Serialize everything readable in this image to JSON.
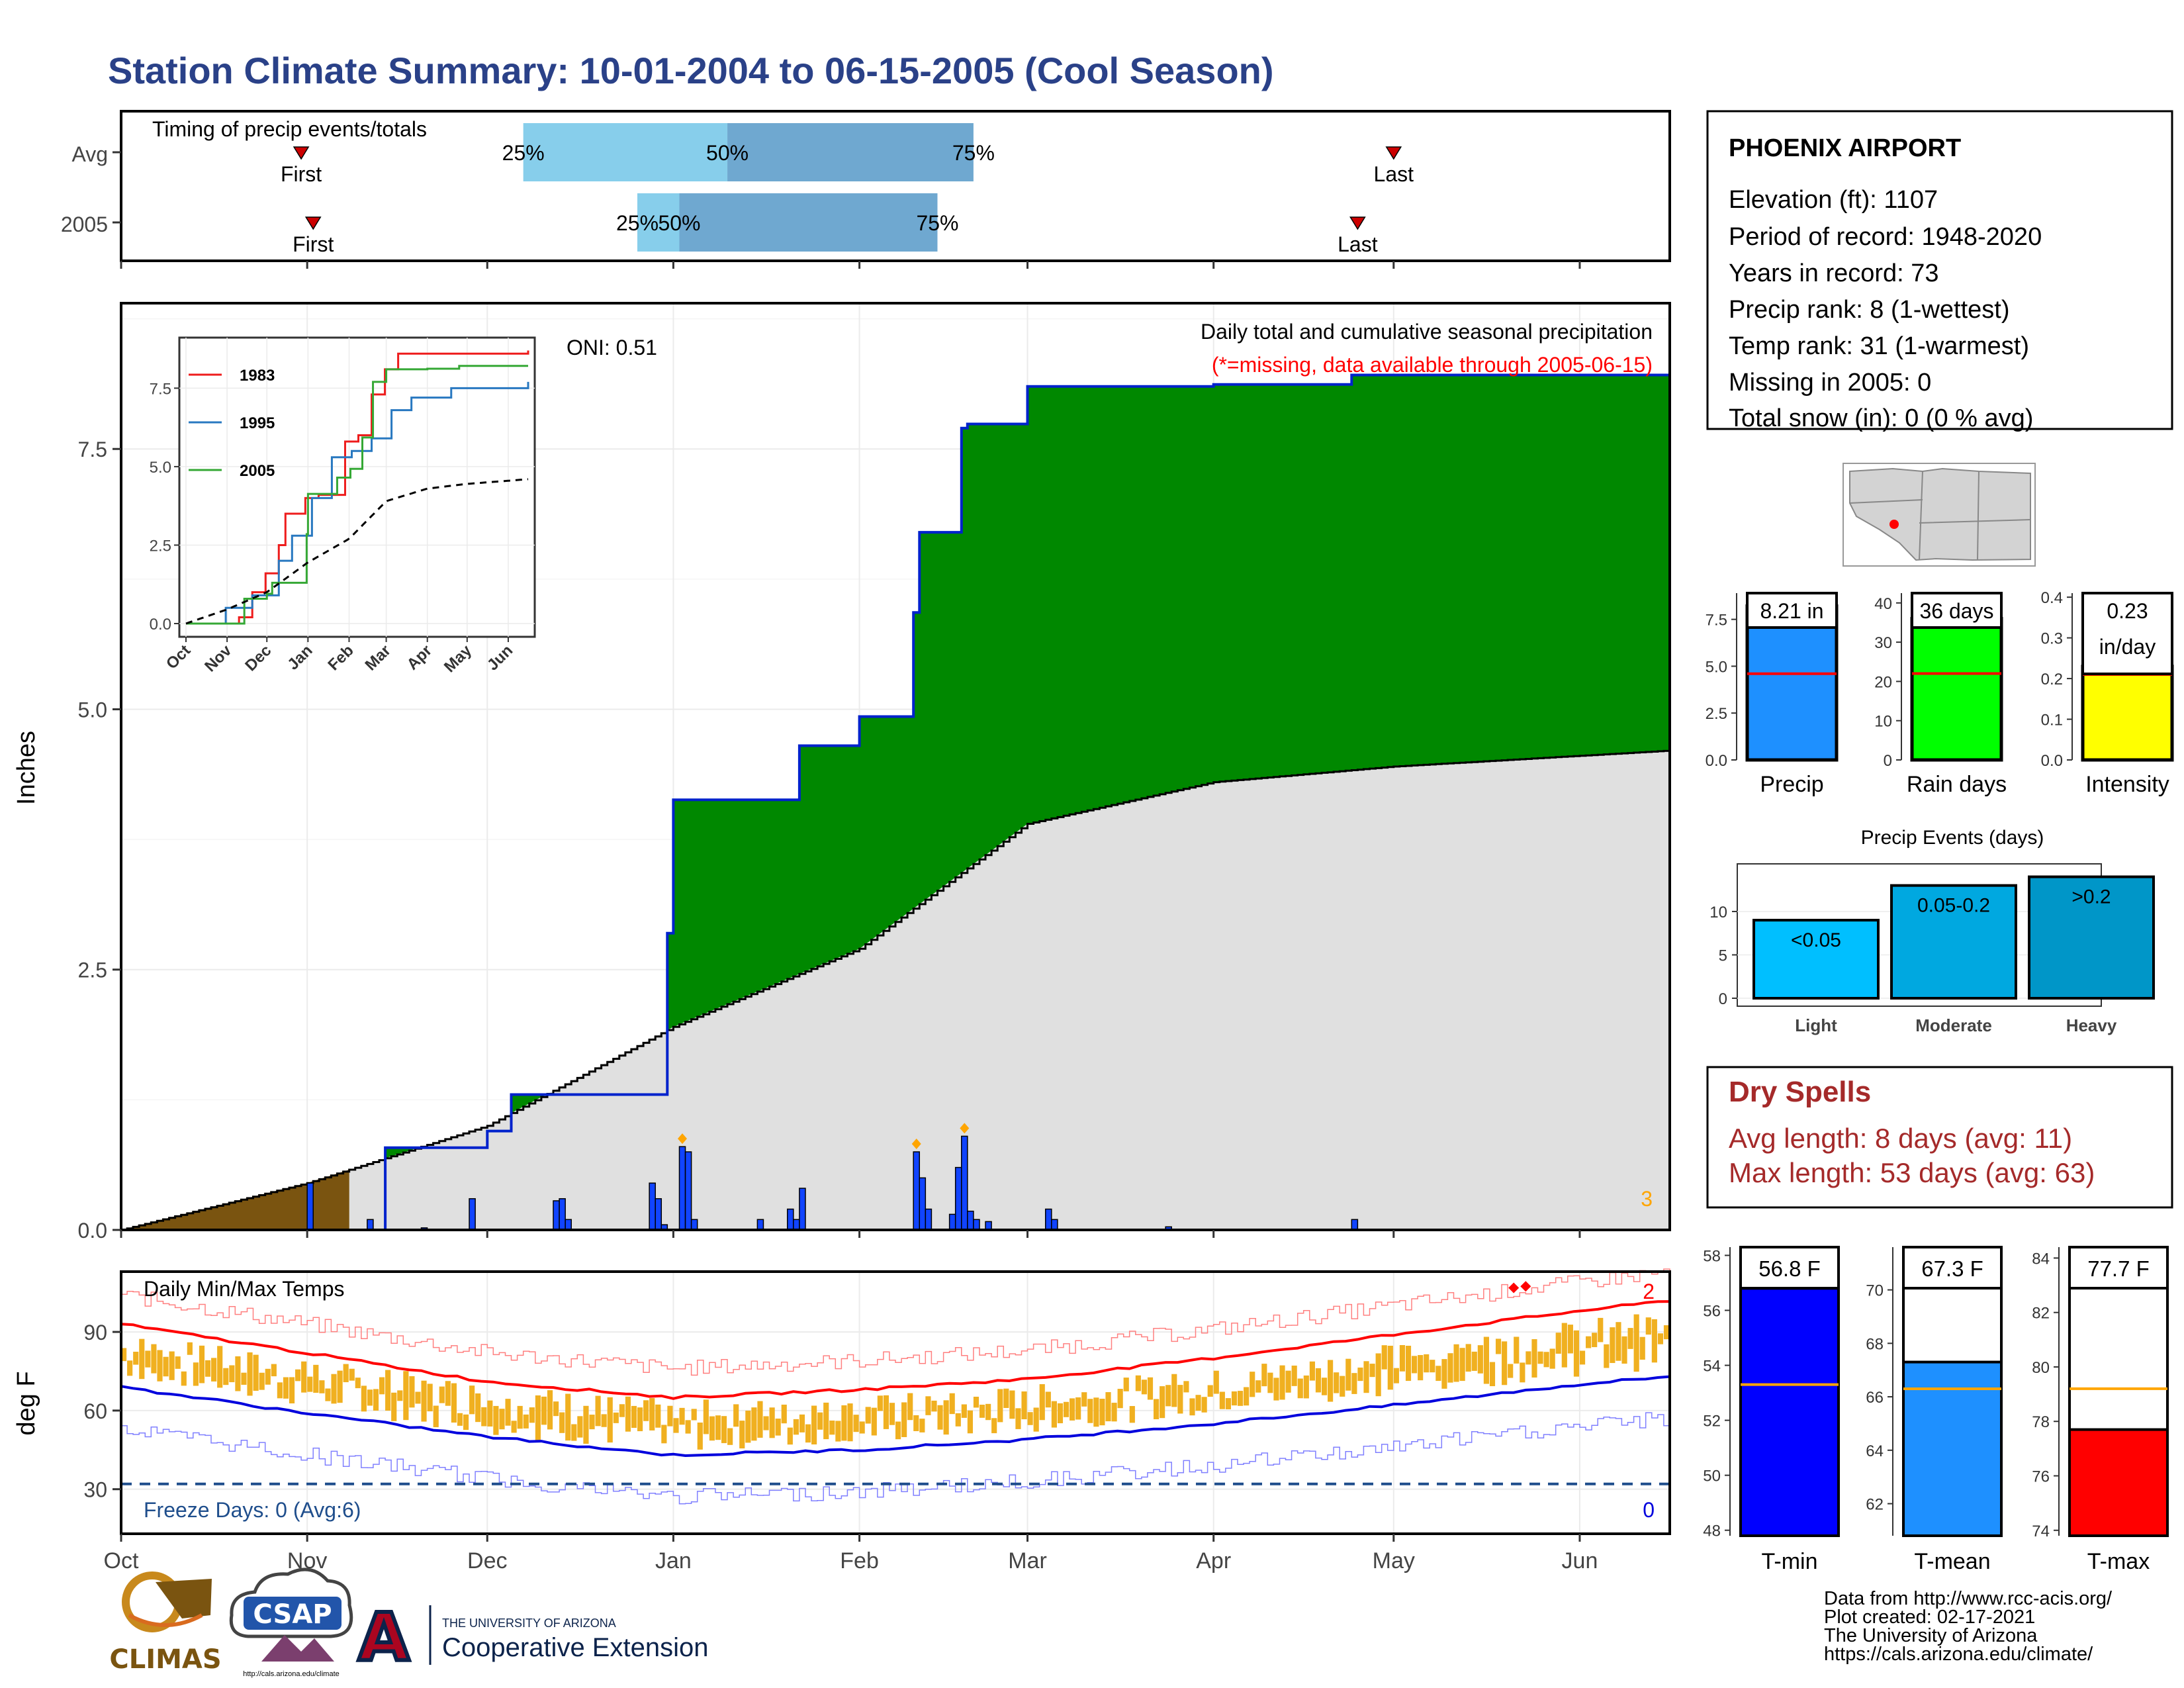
{
  "title": "Station Climate Summary: 10-01-2004 to 06-15-2005 (Cool Season)",
  "colors": {
    "title": "#2a4188",
    "precip_cum": "#008800",
    "precip_cum_line": "#0022cc",
    "avg_area": "#e0e0e0",
    "deficit": "#7a5410",
    "daily_bar": "#1144ff",
    "missing_marker": "#ffa500",
    "temp_band": "#f0b020",
    "avg_max_line": "#ff0000",
    "avg_min_line": "#0000dd",
    "dry_spells": "#a52a2a",
    "freeze_line": "#1f4e8c",
    "light": "#00bfff",
    "moderate": "#00a8e0",
    "heavy": "#0096c8"
  },
  "timing": {
    "label": "Timing of precip events/totals",
    "rows": [
      {
        "name": "Avg",
        "first_label": "First",
        "last_label": "Last",
        "p25_label": "25%",
        "p50_label": "50%",
        "p75_label": "75%",
        "first_day": 30,
        "last_day": 212,
        "p25_day": 67,
        "p50_day": 101,
        "p75_day": 142
      },
      {
        "name": "2005",
        "first_label": "First",
        "last_label": "Last",
        "p25_label": "25%",
        "p50_label": "50%",
        "p75_label": "75%",
        "first_day": 32,
        "last_day": 206,
        "p25_day": 86,
        "p50_day": 93,
        "p75_day": 136
      }
    ]
  },
  "months": [
    "Oct",
    "Nov",
    "Dec",
    "Jan",
    "Feb",
    "Mar",
    "Apr",
    "May",
    "Jun"
  ],
  "month_starts": [
    0,
    31,
    61,
    92,
    123,
    151,
    182,
    212,
    243
  ],
  "season_days": 258,
  "main_panel": {
    "y_axis_label": "Inches",
    "y_ticks": [
      "0.0",
      "2.5",
      "5.0",
      "7.5"
    ],
    "oni_label": "ONI: 0.51",
    "caption": "Daily total and cumulative seasonal precipitation",
    "missing_note": "(*=missing, data available through 2005-06-15)",
    "corner_count": "3"
  },
  "inset": {
    "legend": [
      "1983",
      "1995",
      "2005"
    ],
    "y_ticks": [
      "0.0",
      "2.5",
      "5.0",
      "7.5"
    ],
    "months": [
      "Oct",
      "Nov",
      "Dec",
      "Jan",
      "Feb",
      "Mar",
      "Apr",
      "May",
      "Jun"
    ]
  },
  "temp_panel": {
    "title": "Daily Min/Max Temps",
    "y_axis_label": "deg F",
    "y_ticks": [
      "30",
      "60",
      "90"
    ],
    "freeze_label": "Freeze Days: 0 (Avg:6)",
    "record_high_count": "2",
    "record_low_count": "0"
  },
  "station": {
    "name": "PHOENIX AIRPORT",
    "lines": [
      "Elevation (ft): 1107",
      "Period of record: 1948-2020",
      "Years in record: 73",
      "Precip rank: 8 (1-wettest)",
      "Temp rank: 31 (1-warmest)",
      "Missing in 2005: 0",
      "Total snow (in): 0 (0 % avg)"
    ]
  },
  "mini_bars": [
    {
      "label": "Precip",
      "value_label": "8.21 in",
      "value": 8.21,
      "avg": 4.6,
      "ymax": 8.9,
      "ticks": [
        "0.0",
        "2.5",
        "5.0",
        "7.5"
      ],
      "tick_values": [
        0,
        2.5,
        5,
        7.5
      ],
      "color": "#1e90ff"
    },
    {
      "label": "Rain days",
      "value_label": "36 days",
      "value": 36,
      "avg": 22,
      "ymax": 42.5,
      "ticks": [
        "0",
        "10",
        "20",
        "30",
        "40"
      ],
      "tick_values": [
        0,
        10,
        20,
        30,
        40
      ],
      "color": "#00ff00"
    },
    {
      "label": "Intensity",
      "value_label": "0.23\nin/day",
      "value": 0.23,
      "avg": 0.21,
      "ymax": 0.41,
      "ticks": [
        "0.0",
        "0.1",
        "0.2",
        "0.3",
        "0.4"
      ],
      "tick_values": [
        0,
        0.1,
        0.2,
        0.3,
        0.4
      ],
      "color": "#ffff00"
    }
  ],
  "events": {
    "title": "Precip Events (days)",
    "categories": [
      "Light",
      "Moderate",
      "Heavy"
    ],
    "value_labels": [
      "<0.05",
      "0.05-0.2",
      ">0.2"
    ],
    "values": [
      9,
      13,
      14
    ],
    "ticks": [
      "0",
      "5",
      "10"
    ],
    "tick_values": [
      0,
      5,
      10
    ],
    "ymax": 14.5
  },
  "dry_spells": {
    "title": "Dry Spells",
    "avg_line": "Avg length: 8 days (avg: 11)",
    "max_line": "Max length: 53 days (avg: 63)"
  },
  "temp_bars": [
    {
      "label": "T-min",
      "value_label": "56.8 F",
      "value": 56.8,
      "avg": 53.3,
      "ymin": 47.8,
      "ymax": 58.3,
      "ticks": [
        "48",
        "50",
        "52",
        "54",
        "56",
        "58"
      ],
      "tick_values": [
        48,
        50,
        52,
        54,
        56,
        58
      ],
      "color": "#0000ff"
    },
    {
      "label": "T-mean",
      "value_label": "67.3 F",
      "value": 67.3,
      "avg": 66.3,
      "ymin": 60.8,
      "ymax": 71.6,
      "ticks": [
        "62",
        "64",
        "66",
        "68",
        "70"
      ],
      "tick_values": [
        62,
        64,
        66,
        68,
        70
      ],
      "color": "#1e90ff"
    },
    {
      "label": "T-max",
      "value_label": "77.7 F",
      "value": 77.7,
      "avg": 79.2,
      "ymin": 73.8,
      "ymax": 84.4,
      "ticks": [
        "74",
        "76",
        "78",
        "80",
        "82",
        "84"
      ],
      "tick_values": [
        74,
        76,
        78,
        80,
        82,
        84
      ],
      "color": "#ff0000"
    }
  ],
  "footer": {
    "logo_climas": "CLIMAS",
    "logo_csap": "CSAP",
    "csap_url": "http://cals.arizona.edu/climate",
    "ua_small": "THE UNIVERSITY OF ARIZONA",
    "ua_big": "Cooperative Extension",
    "credits": [
      "Data from http://www.rcc-acis.org/",
      "Plot created: 02-17-2021",
      "The University of Arizona",
      "https://cals.arizona.edu/climate/"
    ]
  },
  "chart_data": [
    {
      "type": "area",
      "title": "Daily total and cumulative seasonal precipitation",
      "ylabel": "Inches",
      "ylim": [
        0,
        8.9
      ],
      "xlabel": "",
      "series": [
        {
          "name": "2005",
          "x": [
            "2004-10-01",
            "2004-11-01",
            "2004-11-14",
            "2004-12-01",
            "2004-12-05",
            "2004-12-31",
            "2005-01-01",
            "2005-01-04",
            "2005-01-22",
            "2005-02-01",
            "2005-02-10",
            "2005-02-11",
            "2005-02-18",
            "2005-02-19",
            "2005-03-01",
            "2005-04-01",
            "2005-04-24",
            "2005-06-15"
          ],
          "values": [
            0.0,
            0.0,
            0.79,
            0.95,
            1.3,
            2.85,
            4.13,
            4.13,
            4.65,
            4.93,
            5.93,
            6.7,
            7.7,
            7.74,
            8.1,
            8.12,
            8.21,
            8.21
          ]
        },
        {
          "name": "",
          "x": [
            "2004-10-01",
            "2004-11-01",
            "2004-12-01",
            "2005-01-01",
            "2005-02-01",
            "2005-03-01",
            "2005-04-01",
            "2005-05-01",
            "2005-06-15"
          ],
          "values": [
            0.0,
            0.45,
            1.0,
            1.95,
            2.7,
            3.9,
            4.3,
            4.45,
            4.6
          ]
        }
      ],
      "daily_precip": {
        "x": [
          "2004-11-01",
          "2004-11-11",
          "2004-11-20",
          "2004-11-28",
          "2004-12-12",
          "2004-12-13",
          "2004-12-14",
          "2004-12-28",
          "2004-12-29",
          "2004-12-30",
          "2005-01-02",
          "2005-01-03",
          "2005-01-04",
          "2005-01-15",
          "2005-01-20",
          "2005-01-21",
          "2005-01-22",
          "2005-02-10",
          "2005-02-11",
          "2005-02-12",
          "2005-02-16",
          "2005-02-17",
          "2005-02-18",
          "2005-02-19",
          "2005-02-20",
          "2005-02-22",
          "2005-03-04",
          "2005-03-05",
          "2005-03-24",
          "2005-04-24"
        ],
        "values": [
          0.45,
          0.1,
          0.02,
          0.3,
          0.28,
          0.3,
          0.1,
          0.45,
          0.3,
          0.05,
          0.8,
          0.75,
          0.1,
          0.1,
          0.2,
          0.1,
          0.4,
          0.75,
          0.5,
          0.2,
          0.15,
          0.6,
          0.9,
          0.18,
          0.1,
          0.08,
          0.2,
          0.1,
          0.03,
          0.1
        ]
      }
    },
    {
      "type": "line",
      "title": "",
      "ylim": [
        0,
        8.9
      ],
      "series": [
        {
          "name": "1983",
          "x": [
            0,
            40,
            50,
            60,
            70,
            75,
            90,
            100,
            120,
            130,
            140,
            150,
            160,
            258
          ],
          "values": [
            0,
            0.2,
            1.0,
            1.6,
            2.5,
            3.5,
            4.0,
            4.1,
            5.8,
            6.0,
            7.3,
            8.1,
            8.6,
            8.7
          ]
        },
        {
          "name": "1995",
          "x": [
            0,
            30,
            50,
            70,
            80,
            95,
            110,
            125,
            140,
            155,
            170,
            200,
            258
          ],
          "values": [
            0,
            0.5,
            0.9,
            2.0,
            2.8,
            4.0,
            5.3,
            5.5,
            5.9,
            6.8,
            7.2,
            7.5,
            7.7
          ]
        },
        {
          "name": "2005",
          "x": [
            0,
            31,
            44,
            61,
            65,
            91,
            92,
            114,
            124,
            133,
            141,
            151,
            182,
            206,
            258
          ],
          "values": [
            0,
            0,
            0.79,
            0.95,
            1.3,
            2.85,
            4.13,
            4.65,
            4.93,
            5.93,
            7.7,
            8.1,
            8.12,
            8.21,
            8.21
          ]
        },
        {
          "name": "",
          "x": [
            0,
            31,
            61,
            92,
            123,
            151,
            182,
            212,
            258
          ],
          "values": [
            0,
            0.45,
            1.0,
            1.95,
            2.7,
            3.9,
            4.3,
            4.45,
            4.6
          ]
        }
      ]
    },
    {
      "type": "area",
      "title": "Daily Min/Max Temps",
      "ylabel": "deg F",
      "ylim": [
        13,
        113
      ],
      "series": [
        {
          "name": "",
          "x": [
            0,
            31,
            61,
            92,
            123,
            151,
            182,
            212,
            243,
            258
          ],
          "values": [
            93,
            82,
            71,
            65,
            68,
            72,
            80,
            89,
            98,
            102
          ]
        },
        {
          "name": "",
          "x": [
            0,
            31,
            61,
            92,
            123,
            151,
            182,
            212,
            243,
            258
          ],
          "values": [
            69,
            59,
            50,
            43,
            45,
            49,
            55,
            62,
            70,
            73
          ]
        }
      ]
    },
    {
      "type": "bar",
      "categories": [
        "Precip",
        "Rain days",
        "Intensity"
      ],
      "values": [
        8.21,
        36,
        0.23
      ]
    },
    {
      "type": "bar",
      "title": "Precip Events (days)",
      "categories": [
        "Light",
        "Moderate",
        "Heavy"
      ],
      "values": [
        9,
        13,
        14
      ]
    },
    {
      "type": "bar",
      "categories": [
        "T-min",
        "T-mean",
        "T-max"
      ],
      "values": [
        56.8,
        67.3,
        77.7
      ]
    }
  ]
}
